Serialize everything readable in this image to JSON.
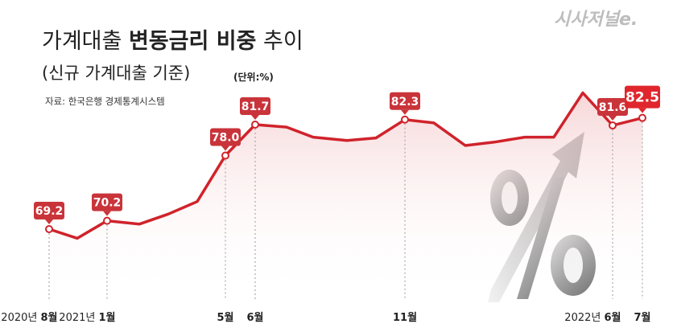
{
  "header": {
    "title_light": "가계대출 ",
    "title_bold": "변동금리 비중",
    "title_tail": " 추이",
    "subtitle": "(신규 가계대출 기준)",
    "unit": "(단위:%)",
    "source": "자료: 한국은행 경제통계시스템",
    "brand": "시사저널e."
  },
  "colors": {
    "line": "#d0232b",
    "label_bg": "#c9343a",
    "label_bg_last": "#e0262c"
  },
  "chart_data": {
    "type": "line",
    "series": [
      {
        "values": [
          69.2,
          68.1,
          70.2,
          69.8,
          71.0,
          72.5,
          78.0,
          81.7,
          81.4,
          80.2,
          79.8,
          80.1,
          82.3,
          81.9,
          79.2,
          79.6,
          80.2,
          80.2,
          85.5,
          81.6,
          82.5
        ]
      }
    ],
    "labeled_points": [
      {
        "index": 0,
        "text": "69.2"
      },
      {
        "index": 2,
        "text": "70.2"
      },
      {
        "index": 6,
        "text": "78.0"
      },
      {
        "index": 7,
        "text": "81.7"
      },
      {
        "index": 12,
        "text": "82.3"
      },
      {
        "index": 19,
        "text": "81.6"
      },
      {
        "index": 20,
        "text": "82.5"
      }
    ],
    "x_ticks": [
      {
        "index": 0,
        "year": "2020년 ",
        "month": "8월"
      },
      {
        "index": 2,
        "year": "2021년 ",
        "month": "1월"
      },
      {
        "index": 6,
        "year": "",
        "month": "5월"
      },
      {
        "index": 7,
        "year": "",
        "month": "6월"
      },
      {
        "index": 12,
        "year": "",
        "month": "11월"
      },
      {
        "index": 19,
        "year": "2022년 ",
        "month": "6월"
      },
      {
        "index": 20,
        "year": "",
        "month": "7월"
      }
    ]
  }
}
